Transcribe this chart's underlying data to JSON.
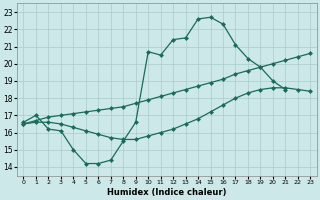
{
  "title": "",
  "xlabel": "Humidex (Indice chaleur)",
  "bg_color": "#cce8e8",
  "grid_color": "#aacccc",
  "line_color": "#1a6b5a",
  "xlim": [
    -0.5,
    23.5
  ],
  "ylim": [
    13.5,
    23.5
  ],
  "xticks": [
    0,
    1,
    2,
    3,
    4,
    5,
    6,
    7,
    8,
    9,
    10,
    11,
    12,
    13,
    14,
    15,
    16,
    17,
    18,
    19,
    20,
    21,
    22,
    23
  ],
  "yticks": [
    14,
    15,
    16,
    17,
    18,
    19,
    20,
    21,
    22,
    23
  ],
  "line1_x": [
    0,
    1,
    2,
    3,
    4,
    5,
    6,
    7,
    8,
    9,
    10,
    11,
    12,
    13,
    14,
    15,
    16,
    17,
    18,
    19,
    20,
    21
  ],
  "line1_y": [
    16.6,
    17.0,
    16.2,
    16.1,
    15.0,
    14.2,
    14.2,
    14.4,
    15.5,
    16.6,
    20.7,
    20.5,
    21.4,
    21.5,
    22.6,
    22.7,
    22.3,
    21.1,
    20.3,
    19.8,
    19.0,
    18.5
  ],
  "line2_x": [
    0,
    1,
    2,
    3,
    4,
    5,
    6,
    7,
    8,
    9,
    10,
    11,
    12,
    13,
    14,
    15,
    16,
    17,
    18,
    19,
    20,
    21,
    22,
    23
  ],
  "line2_y": [
    16.5,
    16.7,
    16.9,
    17.0,
    17.1,
    17.2,
    17.3,
    17.4,
    17.5,
    17.7,
    17.9,
    18.1,
    18.3,
    18.5,
    18.7,
    18.9,
    19.1,
    19.4,
    19.6,
    19.8,
    20.0,
    20.2,
    20.4,
    20.6
  ],
  "line3_x": [
    0,
    1,
    2,
    3,
    4,
    5,
    6,
    7,
    8,
    9,
    10,
    11,
    12,
    13,
    14,
    15,
    16,
    17,
    18,
    19,
    20,
    21,
    22,
    23
  ],
  "line3_y": [
    16.5,
    16.6,
    16.6,
    16.5,
    16.3,
    16.1,
    15.9,
    15.7,
    15.6,
    15.6,
    15.8,
    16.0,
    16.2,
    16.5,
    16.8,
    17.2,
    17.6,
    18.0,
    18.3,
    18.5,
    18.6,
    18.6,
    18.5,
    18.4
  ],
  "markersize": 2.5,
  "linewidth": 0.9
}
